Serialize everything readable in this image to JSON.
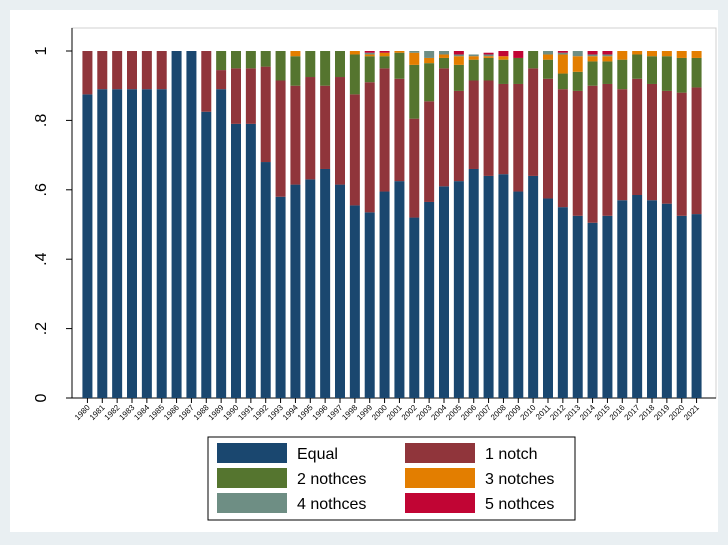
{
  "chart_data": {
    "type": "stacked_bar",
    "categories": [
      "1980",
      "1981",
      "1982",
      "1983",
      "1984",
      "1985",
      "1986",
      "1987",
      "1988",
      "1989",
      "1990",
      "1991",
      "1992",
      "1993",
      "1994",
      "1995",
      "1996",
      "1997",
      "1998",
      "1999",
      "2000",
      "2001",
      "2002",
      "2003",
      "2004",
      "2005",
      "2006",
      "2007",
      "2008",
      "2009",
      "2010",
      "2011",
      "2012",
      "2013",
      "2014",
      "2015",
      "2016",
      "2017",
      "2018",
      "2019",
      "2020",
      "2021"
    ],
    "series": [
      {
        "name": "Equal",
        "color": "#1a476f",
        "values": [
          0.875,
          0.89,
          0.89,
          0.89,
          0.89,
          0.89,
          1,
          1,
          0.825,
          0.89,
          0.79,
          0.79,
          0.68,
          0.58,
          0.615,
          0.63,
          0.66,
          0.615,
          0.555,
          0.535,
          0.595,
          0.625,
          0.52,
          0.565,
          0.61,
          0.625,
          0.66,
          0.64,
          0.645,
          0.595,
          0.64,
          0.575,
          0.55,
          0.525,
          0.505,
          0.525,
          0.57,
          0.585,
          0.57,
          0.56,
          0.525,
          0.53
        ]
      },
      {
        "name": "1 notch",
        "color": "#90353b",
        "values": [
          0.125,
          0.11,
          0.11,
          0.11,
          0.11,
          0.11,
          0,
          0,
          0.175,
          0.055,
          0.16,
          0.16,
          0.275,
          0.335,
          0.285,
          0.295,
          0.24,
          0.31,
          0.32,
          0.375,
          0.355,
          0.295,
          0.285,
          0.29,
          0.34,
          0.26,
          0.255,
          0.275,
          0.26,
          0.31,
          0.31,
          0.345,
          0.34,
          0.36,
          0.395,
          0.38,
          0.32,
          0.335,
          0.335,
          0.325,
          0.355,
          0.365
        ]
      },
      {
        "name": "2 nothces",
        "color": "#55752f",
        "values": [
          0,
          0,
          0,
          0,
          0,
          0,
          0,
          0,
          0,
          0.055,
          0.05,
          0.05,
          0.045,
          0.085,
          0.085,
          0.075,
          0.1,
          0.075,
          0.115,
          0.075,
          0.035,
          0.075,
          0.155,
          0.11,
          0.03,
          0.075,
          0.06,
          0.065,
          0.07,
          0.075,
          0.05,
          0.055,
          0.045,
          0.055,
          0.07,
          0.065,
          0.085,
          0.07,
          0.08,
          0.1,
          0.1,
          0.085
        ]
      },
      {
        "name": "3 notches",
        "color": "#e37e00",
        "values": [
          0,
          0,
          0,
          0,
          0,
          0,
          0,
          0,
          0,
          0,
          0,
          0,
          0,
          0,
          0.015,
          0,
          0,
          0,
          0.01,
          0.005,
          0.01,
          0.005,
          0.035,
          0.015,
          0.01,
          0.025,
          0.01,
          0.005,
          0.01,
          0,
          0,
          0.015,
          0.055,
          0.045,
          0.015,
          0.015,
          0.025,
          0.01,
          0.015,
          0.015,
          0.02,
          0.02
        ]
      },
      {
        "name": "4 nothces",
        "color": "#6e8e84",
        "values": [
          0,
          0,
          0,
          0,
          0,
          0,
          0,
          0,
          0,
          0,
          0,
          0,
          0,
          0,
          0,
          0,
          0,
          0,
          0,
          0.005,
          0,
          0,
          0.005,
          0.02,
          0.01,
          0.005,
          0.005,
          0.005,
          0,
          0,
          0,
          0.01,
          0.005,
          0.015,
          0.005,
          0.005,
          0,
          0,
          0,
          0,
          0,
          0
        ]
      },
      {
        "name": "5 nothces",
        "color": "#c10534",
        "values": [
          0,
          0,
          0,
          0,
          0,
          0,
          0,
          0,
          0,
          0,
          0,
          0,
          0,
          0,
          0,
          0,
          0,
          0,
          0,
          0.005,
          0.005,
          0,
          0,
          0,
          0,
          0.01,
          0,
          0.005,
          0.015,
          0.02,
          0,
          0,
          0.005,
          0,
          0.01,
          0.01,
          0,
          0,
          0,
          0,
          0,
          0
        ]
      }
    ],
    "ylim": [
      0,
      1
    ],
    "yticks": [
      0,
      {
        "value": 0.2,
        "label": ".2"
      },
      {
        "value": 0.4,
        "label": ".4"
      },
      {
        "value": 0.6,
        "label": ".6"
      },
      {
        "value": 0.8,
        "label": ".8"
      },
      1
    ],
    "grid": false
  }
}
